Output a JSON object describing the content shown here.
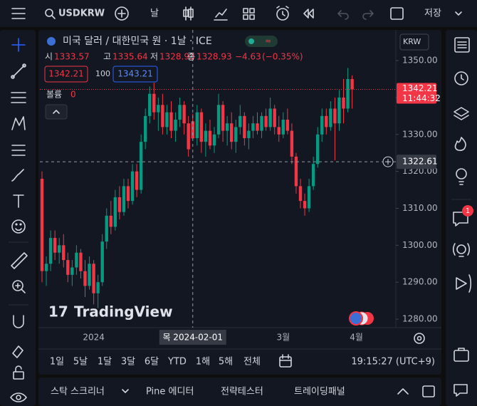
{
  "top_toolbar": {
    "symbol": "USDKRW",
    "interval": "날",
    "save": "저장"
  },
  "chart_data": {
    "type": "candlestick",
    "title": "미국 달러 / 대한민국 원 · 1날 · ICE",
    "ohlc_names": [
      "시",
      "고",
      "저",
      "종"
    ],
    "ohlc_values": [
      1333.57,
      1335.64,
      1328.93,
      1328.93
    ],
    "change": {
      "value": -4.63,
      "label": "−4.63"
    },
    "change_pct": {
      "value": -0.35,
      "label": "(−0.35%)"
    },
    "bid": 1342.21,
    "spread": 100,
    "ask": 1343.21,
    "volume_label": "볼륨",
    "volume": 0,
    "currency": "KRW",
    "watermark": "TradingView",
    "categories": [
      null,
      null,
      null,
      null,
      null,
      null,
      null,
      null,
      null,
      null,
      null,
      null,
      "2024",
      null,
      null,
      null,
      null,
      null,
      null,
      null,
      null,
      null,
      null,
      null,
      null,
      null,
      null,
      null,
      null,
      null,
      null,
      null,
      null,
      null,
      null,
      "목 2024-02-01",
      null,
      null,
      null,
      null,
      null,
      null,
      null,
      null,
      null,
      null,
      null,
      null,
      null,
      null,
      null,
      null,
      null,
      null,
      null,
      null,
      "3월",
      null,
      null,
      null,
      null,
      null,
      null,
      null,
      null,
      null,
      null,
      null,
      null,
      null,
      null,
      null,
      null,
      "4월"
    ],
    "ohlc": [
      [
        1318,
        1320,
        1290,
        1293
      ],
      [
        1293,
        1297,
        1289,
        1295
      ],
      [
        1295,
        1304,
        1293,
        1302
      ],
      [
        1302,
        1304,
        1296,
        1298
      ],
      [
        1298,
        1302,
        1295,
        1300
      ],
      [
        1300,
        1303,
        1294,
        1296
      ],
      [
        1296,
        1298,
        1290,
        1292
      ],
      [
        1292,
        1296,
        1289,
        1294
      ],
      [
        1294,
        1300,
        1292,
        1298
      ],
      [
        1298,
        1299,
        1291,
        1293
      ],
      [
        1293,
        1296,
        1286,
        1289
      ],
      [
        1289,
        1297,
        1288,
        1295
      ],
      [
        1295,
        1296,
        1284,
        1287
      ],
      [
        1287,
        1292,
        1283,
        1290
      ],
      [
        1290,
        1303,
        1289,
        1301
      ],
      [
        1301,
        1310,
        1299,
        1308
      ],
      [
        1308,
        1312,
        1303,
        1305
      ],
      [
        1305,
        1315,
        1304,
        1313
      ],
      [
        1313,
        1316,
        1307,
        1309
      ],
      [
        1309,
        1318,
        1308,
        1316
      ],
      [
        1316,
        1318,
        1310,
        1312
      ],
      [
        1312,
        1322,
        1311,
        1320
      ],
      [
        1320,
        1322,
        1313,
        1315
      ],
      [
        1315,
        1330,
        1314,
        1328
      ],
      [
        1328,
        1337,
        1326,
        1335
      ],
      [
        1335,
        1343,
        1333,
        1341
      ],
      [
        1341,
        1344,
        1334,
        1336
      ],
      [
        1336,
        1340,
        1331,
        1338
      ],
      [
        1338,
        1341,
        1330,
        1332
      ],
      [
        1332,
        1338,
        1330,
        1336
      ],
      [
        1336,
        1339,
        1329,
        1331
      ],
      [
        1331,
        1336,
        1328,
        1334
      ],
      [
        1334,
        1340,
        1332,
        1338
      ],
      [
        1338,
        1339,
        1330,
        1333
      ],
      [
        1333,
        1335,
        1324,
        1326
      ],
      [
        1333.57,
        1335.64,
        1328.93,
        1328.93
      ],
      [
        1329,
        1338,
        1327,
        1336
      ],
      [
        1336,
        1337,
        1325,
        1328
      ],
      [
        1328,
        1333,
        1324,
        1331
      ],
      [
        1331,
        1334,
        1326,
        1327
      ],
      [
        1327,
        1332,
        1325,
        1330
      ],
      [
        1330,
        1341,
        1329,
        1338
      ],
      [
        1338,
        1339,
        1328,
        1331
      ],
      [
        1331,
        1335,
        1327,
        1333
      ],
      [
        1333,
        1336,
        1326,
        1328
      ],
      [
        1328,
        1334,
        1325,
        1332
      ],
      [
        1332,
        1338,
        1330,
        1335
      ],
      [
        1335,
        1336,
        1327,
        1329
      ],
      [
        1329,
        1333,
        1326,
        1331
      ],
      [
        1331,
        1335,
        1329,
        1333
      ],
      [
        1333,
        1336,
        1330,
        1331
      ],
      [
        1331,
        1336,
        1329,
        1335
      ],
      [
        1335,
        1337,
        1331,
        1332
      ],
      [
        1332,
        1340,
        1331,
        1337
      ],
      [
        1337,
        1338,
        1330,
        1332
      ],
      [
        1332,
        1335,
        1328,
        1330
      ],
      [
        1330,
        1336,
        1329,
        1334
      ],
      [
        1334,
        1337,
        1330,
        1331
      ],
      [
        1331,
        1333,
        1322,
        1324
      ],
      [
        1324,
        1325,
        1314,
        1316
      ],
      [
        1316,
        1318,
        1310,
        1312
      ],
      [
        1312,
        1314,
        1308,
        1310
      ],
      [
        1310,
        1318,
        1309,
        1316
      ],
      [
        1316,
        1324,
        1315,
        1322
      ],
      [
        1322,
        1332,
        1321,
        1330
      ],
      [
        1330,
        1337,
        1328,
        1335
      ],
      [
        1335,
        1337,
        1330,
        1332
      ],
      [
        1332,
        1339,
        1331,
        1337
      ],
      [
        1337,
        1340,
        1323,
        1333
      ],
      [
        1333,
        1342,
        1331,
        1340
      ],
      [
        1340,
        1345,
        1333,
        1337
      ],
      [
        1337,
        1348,
        1336,
        1345
      ],
      [
        1345,
        1346,
        1337,
        1342.21
      ],
      null,
      null,
      null,
      null,
      null
    ],
    "up_color": "#089981",
    "down_color": "#f23645",
    "ylim": [
      1277.7,
      1358.3
    ],
    "yticks": [
      {
        "value": 1280,
        "label": "1280.00"
      },
      {
        "value": 1290,
        "label": "1290.00"
      },
      {
        "value": 1300,
        "label": "1300.00"
      },
      {
        "value": 1310,
        "label": "1310.00"
      },
      {
        "value": 1320,
        "label": "1320.00"
      },
      {
        "value": 1330,
        "label": "1330.00"
      },
      {
        "value": 1340,
        "label": "1340.00"
      },
      {
        "value": 1350,
        "label": "1350.00"
      }
    ],
    "last_price": 1342.21,
    "countdown": "11:44:32",
    "crosshair": {
      "x": "목 2024-02-01",
      "y": 1322.61
    }
  },
  "range_bar": {
    "ranges": [
      "1일",
      "5날",
      "1달",
      "3달",
      "6달",
      "YTD",
      "1해",
      "5해",
      "전체"
    ],
    "time": "19:15:27 (UTC+9)"
  },
  "bottom_panel": {
    "tabs": [
      "스탁 스크리너",
      "Pine 에디터",
      "전략테스터",
      "트레이딩패널"
    ]
  },
  "right_toolbar": {
    "badge": "1"
  }
}
